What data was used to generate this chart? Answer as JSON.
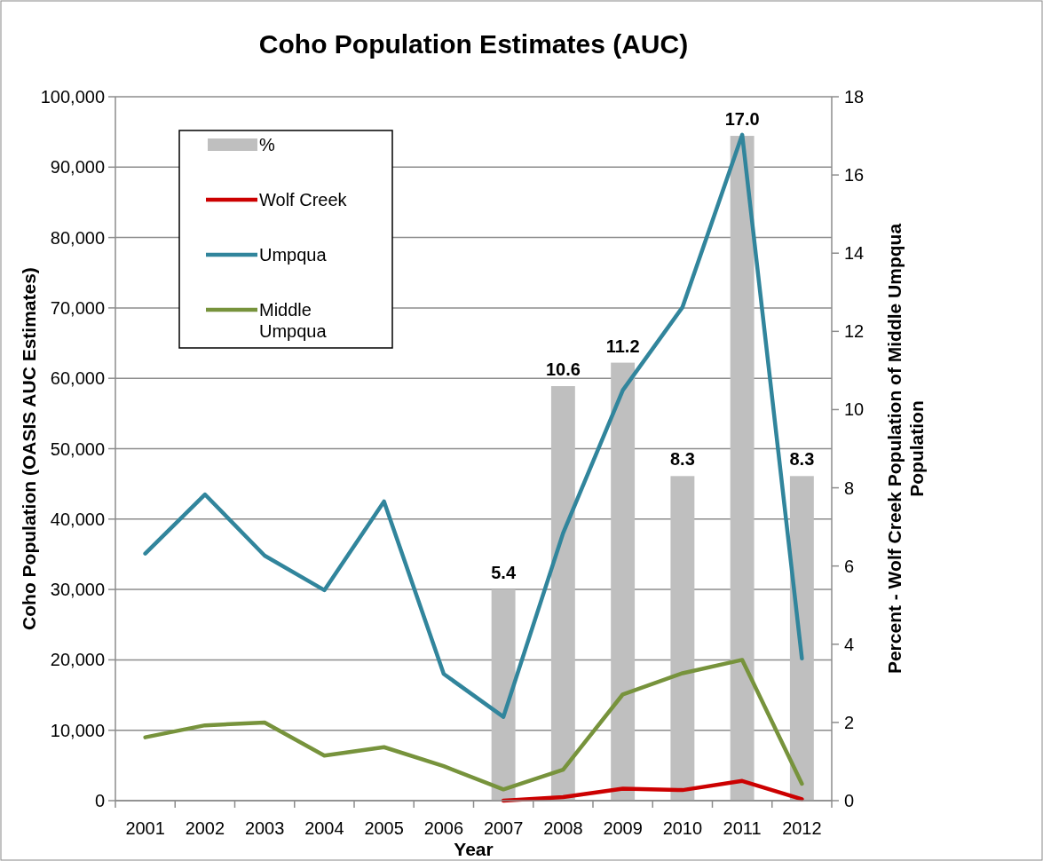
{
  "chart_data": {
    "type": "line",
    "title": "Coho Population Estimates (AUC)",
    "xlabel": "Year",
    "ylabel": "Coho Population (OASIS AUC Estimates)",
    "y2label": "Percent - Wolf Creek Population of Middle Umpqua Population",
    "categories": [
      "2001",
      "2002",
      "2003",
      "2004",
      "2005",
      "2006",
      "2007",
      "2008",
      "2009",
      "2010",
      "2011",
      "2012"
    ],
    "series": [
      {
        "name": "%",
        "type": "bar",
        "axis": "y2",
        "color": "#bfbfbf",
        "values": [
          null,
          null,
          null,
          null,
          null,
          null,
          5.4,
          10.6,
          11.2,
          8.3,
          17.0,
          8.3
        ],
        "value_labels": [
          null,
          null,
          null,
          null,
          null,
          null,
          "5.4",
          "10.6",
          "11.2",
          "8.3",
          "17.0",
          "8.3"
        ]
      },
      {
        "name": "Wolf Creek",
        "color": "#cc0000",
        "values": [
          null,
          null,
          null,
          null,
          null,
          null,
          0,
          500,
          1700,
          1500,
          2800,
          200
        ]
      },
      {
        "name": "Umpqua",
        "color": "#31859c",
        "values": [
          35100,
          43500,
          34800,
          29900,
          42500,
          18000,
          11900,
          38000,
          58300,
          70100,
          94600,
          20200
        ]
      },
      {
        "name": "Middle Umpqua",
        "color": "#77933c",
        "values": [
          9000,
          10700,
          11100,
          6400,
          7600,
          4900,
          1600,
          4400,
          15100,
          18100,
          20000,
          2400
        ]
      }
    ],
    "ylim": [
      0,
      100000
    ],
    "yticks": [
      {
        "value": 0,
        "label": "0"
      },
      {
        "value": 10000,
        "label": "10,000"
      },
      {
        "value": 20000,
        "label": "20,000"
      },
      {
        "value": 30000,
        "label": "30,000"
      },
      {
        "value": 40000,
        "label": "40,000"
      },
      {
        "value": 50000,
        "label": "50,000"
      },
      {
        "value": 60000,
        "label": "60,000"
      },
      {
        "value": 70000,
        "label": "70,000"
      },
      {
        "value": 80000,
        "label": "80,000"
      },
      {
        "value": 90000,
        "label": "90,000"
      },
      {
        "value": 100000,
        "label": "100,000"
      }
    ],
    "y2lim": [
      0,
      18
    ],
    "y2ticks": [
      0,
      2,
      4,
      6,
      8,
      10,
      12,
      14,
      16,
      18
    ],
    "grid": "y",
    "legend": "top left"
  }
}
